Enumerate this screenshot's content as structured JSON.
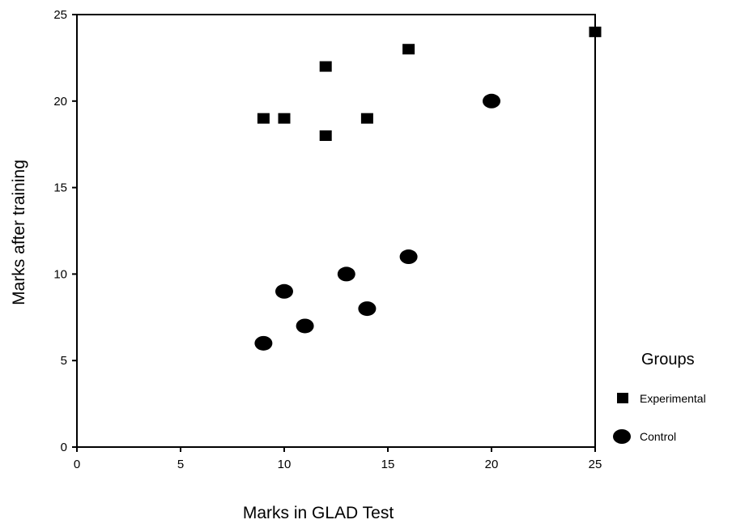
{
  "chart_data": {
    "type": "scatter",
    "title": "",
    "xlabel": "Marks in GLAD Test",
    "ylabel": "Marks after training",
    "xlim": [
      0,
      25
    ],
    "ylim": [
      0,
      25
    ],
    "xticks": [
      0,
      5,
      10,
      15,
      20,
      25
    ],
    "yticks": [
      0,
      5,
      10,
      15,
      20,
      25
    ],
    "grid": false,
    "legend": {
      "title": "Groups",
      "placement": "right"
    },
    "series": [
      {
        "name": "Experimental",
        "marker": "square",
        "color": "#000000",
        "points": [
          {
            "x": 9,
            "y": 19
          },
          {
            "x": 10,
            "y": 19
          },
          {
            "x": 12,
            "y": 22
          },
          {
            "x": 12,
            "y": 18
          },
          {
            "x": 14,
            "y": 19
          },
          {
            "x": 16,
            "y": 23
          },
          {
            "x": 25,
            "y": 24
          }
        ]
      },
      {
        "name": "Control",
        "marker": "circle",
        "color": "#000000",
        "points": [
          {
            "x": 9,
            "y": 6
          },
          {
            "x": 10,
            "y": 9
          },
          {
            "x": 11,
            "y": 7
          },
          {
            "x": 13,
            "y": 10
          },
          {
            "x": 14,
            "y": 8
          },
          {
            "x": 16,
            "y": 11
          },
          {
            "x": 20,
            "y": 20
          }
        ]
      }
    ]
  }
}
